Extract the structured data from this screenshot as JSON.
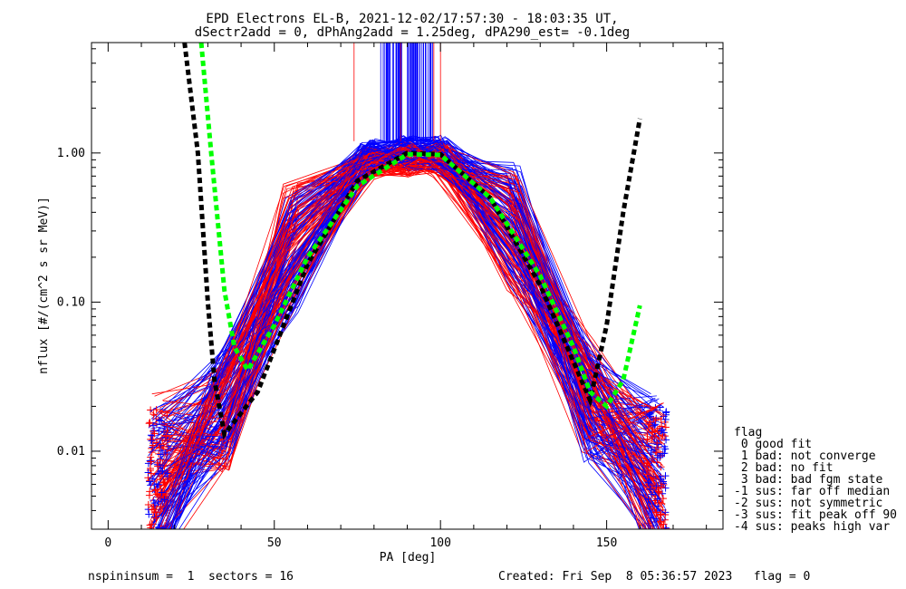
{
  "chart_data": {
    "type": "line",
    "title_line1": "EPD Electrons EL-B, 2021-12-02/17:57:30 - 18:03:35 UT,",
    "title_line2": "dSectr2add = 0, dPhAng2add = 1.25deg, dPA290_est=  -0.1deg",
    "xlabel": "PA [deg]",
    "ylabel": "nflux [#/(cm^2 s sr MeV)]",
    "xlim": [
      -5,
      185
    ],
    "ylim": [
      0.003,
      5.5
    ],
    "y_scale": "log",
    "x_ticks": [
      0,
      50,
      100,
      150
    ],
    "x_tick_labels": [
      "0",
      "50",
      "100",
      "150"
    ],
    "y_ticks": [
      0.01,
      0.1,
      1.0
    ],
    "y_tick_labels": [
      "0.01",
      "0.10",
      "1.00"
    ],
    "legend_title": "flag",
    "legend": [
      " 0 good fit",
      " 1 bad: not converge",
      " 2 bad: no fit",
      " 3 bad: bad fgm state",
      "-1 sus: far off median",
      "-2 sus: not symmetric",
      "-3 sus: fit peak off 90",
      "-4 sus: peaks high var"
    ],
    "colors": {
      "blue_traces": "#0000ff",
      "red_traces": "#ff0000",
      "black_fit": "#000000",
      "green_fit": "#00ff00"
    },
    "series": [
      {
        "color": "blue",
        "x": [
          15,
          35,
          55,
          78,
          90,
          100,
          122,
          145,
          165
        ],
        "y": [
          0.006,
          0.02,
          0.2,
          0.95,
          1.0,
          1.0,
          0.35,
          0.02,
          0.007
        ]
      },
      {
        "color": "red",
        "x": [
          15,
          35,
          55,
          78,
          90,
          100,
          122,
          145,
          165
        ],
        "y": [
          0.007,
          0.018,
          0.25,
          0.85,
          0.9,
          0.9,
          0.3,
          0.022,
          0.006
        ]
      },
      {
        "color": "black",
        "style": "dashed",
        "x": [
          23,
          27,
          30,
          32,
          35,
          45,
          60,
          75,
          90,
          100,
          115,
          130,
          140,
          145,
          150,
          155,
          160
        ],
        "y": [
          5.5,
          1.0,
          0.1,
          0.03,
          0.013,
          0.025,
          0.18,
          0.65,
          1.0,
          0.98,
          0.5,
          0.13,
          0.04,
          0.022,
          0.07,
          0.4,
          1.7
        ]
      },
      {
        "color": "green",
        "style": "dashed",
        "x": [
          28,
          31,
          35,
          38,
          42,
          50,
          60,
          75,
          90,
          100,
          115,
          130,
          140,
          145,
          150,
          155,
          160
        ],
        "y": [
          5.5,
          1.0,
          0.12,
          0.05,
          0.035,
          0.07,
          0.2,
          0.6,
          0.98,
          0.97,
          0.5,
          0.15,
          0.05,
          0.025,
          0.02,
          0.03,
          0.095
        ]
      }
    ]
  },
  "footer": {
    "left": "nspininsum =  1  sectors = 16",
    "right": "Created: Fri Sep  8 05:36:57 2023   flag = 0"
  }
}
